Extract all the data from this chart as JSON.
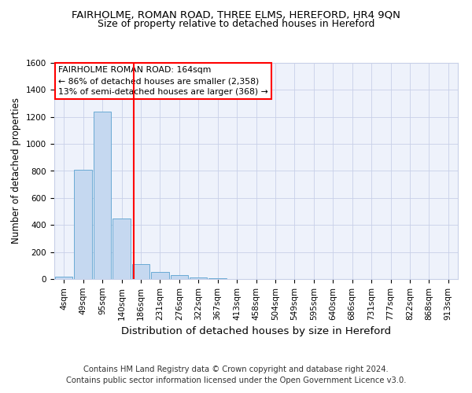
{
  "title1": "FAIRHOLME, ROMAN ROAD, THREE ELMS, HEREFORD, HR4 9QN",
  "title2": "Size of property relative to detached houses in Hereford",
  "xlabel": "Distribution of detached houses by size in Hereford",
  "ylabel": "Number of detached properties",
  "categories": [
    "4sqm",
    "49sqm",
    "95sqm",
    "140sqm",
    "186sqm",
    "231sqm",
    "276sqm",
    "322sqm",
    "367sqm",
    "413sqm",
    "458sqm",
    "504sqm",
    "549sqm",
    "595sqm",
    "640sqm",
    "686sqm",
    "731sqm",
    "777sqm",
    "822sqm",
    "868sqm",
    "913sqm"
  ],
  "values": [
    20,
    810,
    1240,
    450,
    110,
    55,
    30,
    10,
    5,
    2,
    2,
    0,
    0,
    0,
    0,
    0,
    0,
    0,
    0,
    0,
    0
  ],
  "bar_color": "#c5d8f0",
  "bar_edge_color": "#6aaad4",
  "red_line_x": 3.62,
  "annotation_text": "FAIRHOLME ROMAN ROAD: 164sqm\n← 86% of detached houses are smaller (2,358)\n13% of semi-detached houses are larger (368) →",
  "ylim": [
    0,
    1600
  ],
  "yticks": [
    0,
    200,
    400,
    600,
    800,
    1000,
    1200,
    1400,
    1600
  ],
  "footer": "Contains HM Land Registry data © Crown copyright and database right 2024.\nContains public sector information licensed under the Open Government Licence v3.0.",
  "bg_color": "#eef2fb",
  "grid_color": "#c8d0e8",
  "title1_fontsize": 9.5,
  "title2_fontsize": 9,
  "xlabel_fontsize": 9.5,
  "ylabel_fontsize": 8.5,
  "tick_fontsize": 7.5,
  "annotation_fontsize": 7.8,
  "footer_fontsize": 7.2
}
